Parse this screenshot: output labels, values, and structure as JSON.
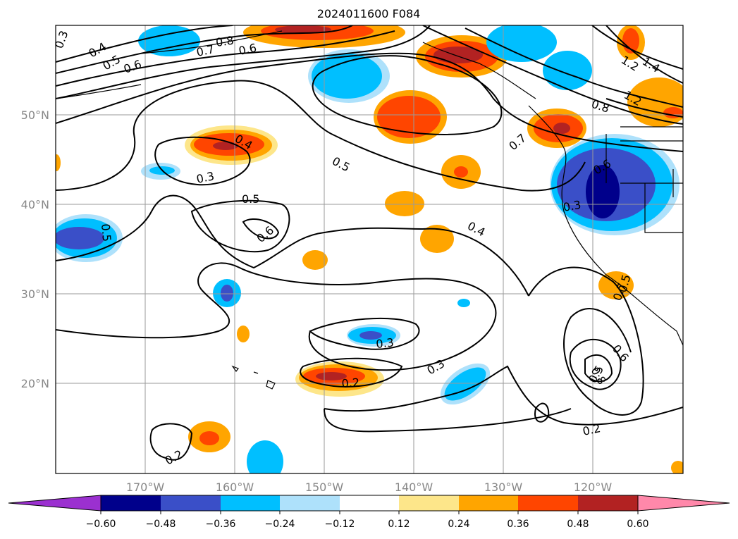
{
  "title": "2024011600 F084",
  "lat_labels": [
    "50°N",
    "40°N",
    "30°N",
    "20°N"
  ],
  "lon_labels": [
    "170°W",
    "160°W",
    "150°W",
    "140°W",
    "130°W",
    "120°W"
  ],
  "colorbar": {
    "tick_labels": [
      "−0.60",
      "−0.48",
      "−0.36",
      "−0.24",
      "−0.12",
      "0.12",
      "0.24",
      "0.36",
      "0.48",
      "0.60"
    ],
    "colors": [
      "#9b30d0",
      "#00008b",
      "#3a4fc8",
      "#00bfff",
      "#aee1fb",
      "#ffffff",
      "#fde68a",
      "#ffa500",
      "#ff4500",
      "#b22222",
      "#ff88aa"
    ]
  },
  "contour_labels": [
    "0.3",
    "0.4",
    "0.5",
    "0.6",
    "0.7",
    "0.8",
    "1.2",
    "1.4",
    "0.8",
    "0.7",
    "0.6",
    "0.4",
    "0.3",
    "0.5",
    "0.5",
    "0.6",
    "0.4",
    "0.5",
    "0.3",
    "0.3",
    "0.2",
    "0.3",
    "0.2",
    "0.2",
    "0.6",
    "0.8",
    "0.5",
    "0.7",
    "0.6",
    "1.2",
    "0.5"
  ]
}
